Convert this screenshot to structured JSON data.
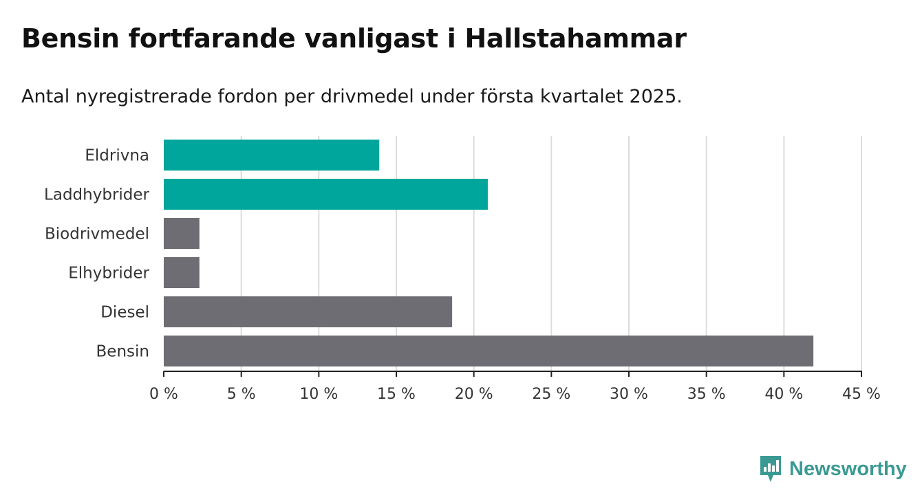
{
  "title": "Bensin fortfarande vanligast i Hallstahammar",
  "subtitle": "Antal nyregistrerade fordon per drivmedel under första kvartalet 2025.",
  "brand": {
    "name": "Newsworthy",
    "icon": "newsworthy-logo-icon"
  },
  "chart_data": {
    "type": "bar",
    "orientation": "horizontal",
    "categories": [
      "Eldrivna",
      "Laddhybrider",
      "Biodrivmedel",
      "Elhybrider",
      "Diesel",
      "Bensin"
    ],
    "values": [
      13.9,
      20.9,
      2.3,
      2.3,
      18.6,
      41.9
    ],
    "colors": [
      "#00a59b",
      "#00a59b",
      "#6e6d73",
      "#6e6d73",
      "#6e6d73",
      "#6e6d73"
    ],
    "xlim": [
      0,
      45
    ],
    "xticks": [
      0,
      5,
      10,
      15,
      20,
      25,
      30,
      35,
      40,
      45
    ],
    "tick_labels": [
      "0 %",
      "5 %",
      "10 %",
      "15 %",
      "20 %",
      "25 %",
      "30 %",
      "35 %",
      "40 %",
      "45 %"
    ],
    "grid": true,
    "legend": "none"
  }
}
